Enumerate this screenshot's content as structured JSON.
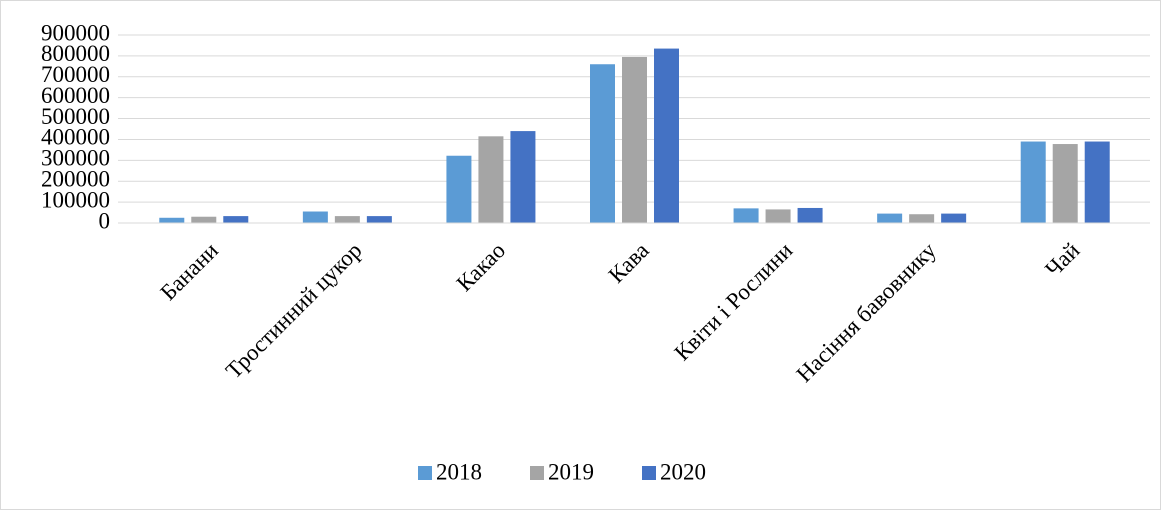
{
  "chart_data": {
    "type": "bar",
    "categories": [
      "Банани",
      "Тростинний цукор",
      "Какао",
      "Кава",
      "Квіти і Рослини",
      "Насіння бавовнику",
      "Чай"
    ],
    "series": [
      {
        "name": "2018",
        "color": "#5b9bd5",
        "values": [
          25000,
          55000,
          322000,
          760000,
          70000,
          45000,
          390000
        ]
      },
      {
        "name": "2019",
        "color": "#a5a5a5",
        "values": [
          30000,
          33000,
          415000,
          795000,
          65000,
          42000,
          378000
        ]
      },
      {
        "name": "2020",
        "color": "#4472c4",
        "values": [
          33000,
          33000,
          440000,
          835000,
          72000,
          45000,
          390000
        ]
      }
    ],
    "ylim": [
      0,
      900000
    ],
    "yticks": [
      0,
      100000,
      200000,
      300000,
      400000,
      500000,
      600000,
      700000,
      800000,
      900000
    ],
    "grid": true,
    "legend": "bottom"
  }
}
